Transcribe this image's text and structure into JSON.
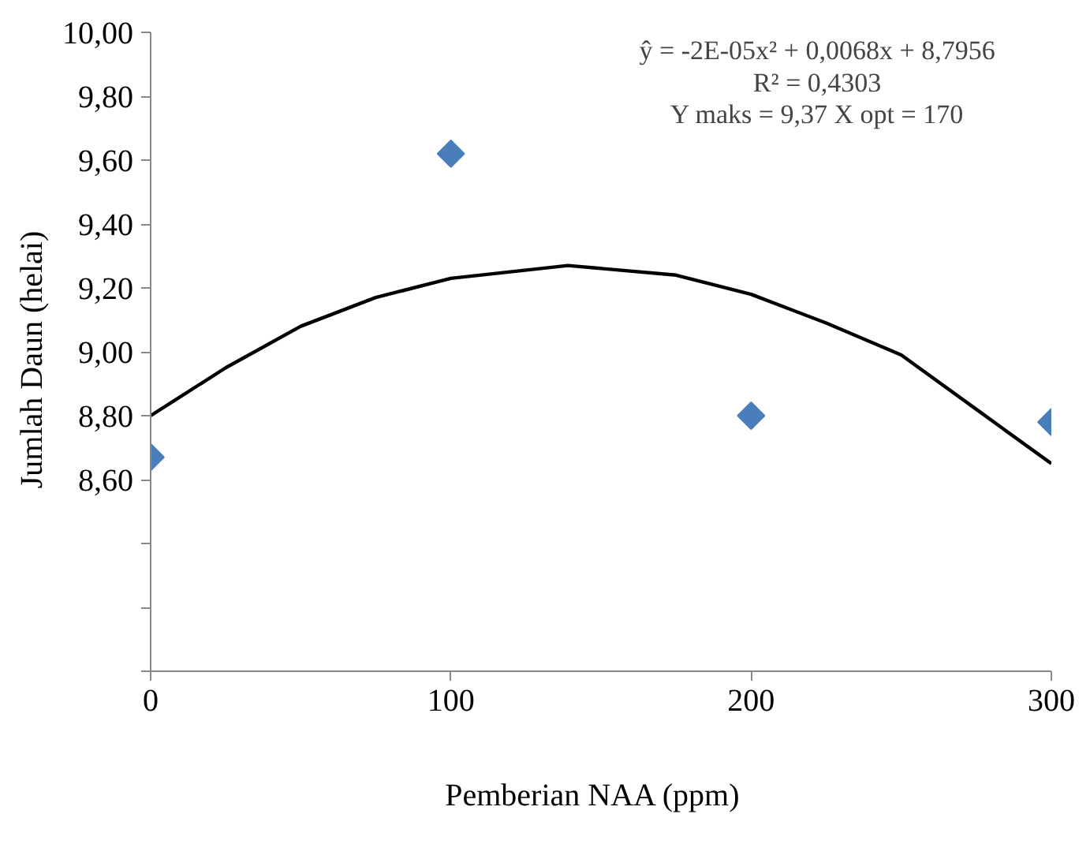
{
  "chart_data": {
    "type": "scatter",
    "xlabel": "Pemberian  NAA  (ppm)",
    "ylabel": "Jumlah  Daun  (helai)",
    "annotations": [
      "ŷ = -2E-05x² + 0,0068x + 8,7956",
      "R² = 0,4303",
      "Y maks = 9,37 X opt = 170"
    ],
    "grid": false,
    "xlim": [
      0,
      300
    ],
    "xticks": [
      0,
      100,
      200,
      300
    ],
    "ylim": [
      8.0,
      10.0
    ],
    "yticks": [
      {
        "value": 8.0,
        "label": null
      },
      {
        "value": 8.2,
        "label": null
      },
      {
        "value": 8.4,
        "label": null
      },
      {
        "value": 8.6,
        "label": "8,60"
      },
      {
        "value": 8.8,
        "label": "8,80"
      },
      {
        "value": 9.0,
        "label": "9,00"
      },
      {
        "value": 9.2,
        "label": "9,20"
      },
      {
        "value": 9.4,
        "label": "9,40"
      },
      {
        "value": 9.6,
        "label": "9,60"
      },
      {
        "value": 9.8,
        "label": "9,80"
      },
      {
        "value": 10.0,
        "label": "10,00"
      }
    ],
    "series": [
      {
        "marker": "diamond",
        "color": "#4a7ebb",
        "x": [
          0,
          100,
          200,
          300
        ],
        "values": [
          8.67,
          9.62,
          8.8,
          8.78
        ]
      },
      {
        "type": "line",
        "color": "#000000",
        "x": [
          0,
          25,
          50,
          75,
          100,
          139,
          175,
          200,
          225,
          250,
          275,
          300
        ],
        "values": [
          8.8,
          8.95,
          9.08,
          9.17,
          9.23,
          9.27,
          9.24,
          9.18,
          9.09,
          8.99,
          8.82,
          8.65
        ]
      }
    ]
  }
}
